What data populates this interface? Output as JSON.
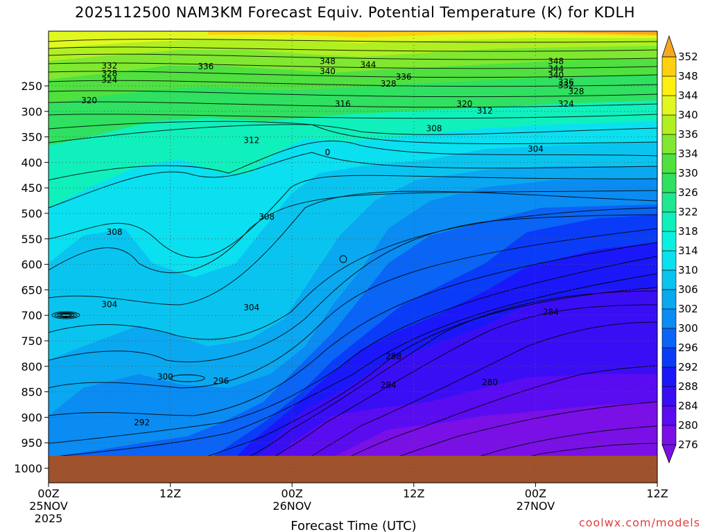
{
  "title": "2025112500 NAM3KM Forecast Equiv. Potential Temperature (K) for KDLH",
  "credit": "coolwx.com/models",
  "chart_data": {
    "type": "heatmap",
    "title": "2025112500 NAM3KM Forecast Equiv. Potential Temperature (K) for KDLH",
    "xlabel": "Forecast Time (UTC)",
    "ylabel": "",
    "x_ticks": [
      {
        "label": "00Z",
        "sub": "25NOV",
        "sub2": "2025",
        "hour": 0
      },
      {
        "label": "12Z",
        "sub": "",
        "sub2": "",
        "hour": 12
      },
      {
        "label": "00Z",
        "sub": "26NOV",
        "sub2": "",
        "hour": 24
      },
      {
        "label": "12Z",
        "sub": "",
        "sub2": "",
        "hour": 36
      },
      {
        "label": "00Z",
        "sub": "27NOV",
        "sub2": "",
        "hour": 48
      },
      {
        "label": "12Z",
        "sub": "",
        "sub2": "",
        "hour": 60
      }
    ],
    "x_range_hours": [
      0,
      60
    ],
    "y_ticks": [
      250,
      300,
      350,
      400,
      450,
      500,
      550,
      600,
      650,
      700,
      750,
      800,
      850,
      900,
      950,
      1000
    ],
    "y_unit": "hPa",
    "colorbar_levels": [
      276,
      280,
      284,
      288,
      292,
      296,
      300,
      302,
      306,
      310,
      314,
      318,
      322,
      326,
      330,
      334,
      336,
      340,
      344,
      348,
      352
    ],
    "colorbar_colors": [
      "#7a10e6",
      "#5a0cf0",
      "#3a0ef5",
      "#1a18f8",
      "#0a3cf8",
      "#0a64f5",
      "#0a8cf2",
      "#0aa8f0",
      "#0ac4f0",
      "#0ae0f0",
      "#0af0e0",
      "#10f0bc",
      "#20e890",
      "#30e060",
      "#50e040",
      "#80e830",
      "#b0f020",
      "#e0f820",
      "#fff010",
      "#ffd010",
      "#f8a820"
    ],
    "contour_labels": [
      {
        "value": 348,
        "hour": 27.5,
        "p": 203
      },
      {
        "value": 348,
        "hour": 50,
        "p": 203
      },
      {
        "value": 344,
        "hour": 31.5,
        "p": 210
      },
      {
        "value": 344,
        "hour": 50,
        "p": 218
      },
      {
        "value": 340,
        "hour": 27.5,
        "p": 223
      },
      {
        "value": 340,
        "hour": 50,
        "p": 230
      },
      {
        "value": 336,
        "hour": 15.5,
        "p": 213
      },
      {
        "value": 336,
        "hour": 35,
        "p": 234
      },
      {
        "value": 336,
        "hour": 51,
        "p": 244
      },
      {
        "value": 332,
        "hour": 6,
        "p": 212
      },
      {
        "value": 332,
        "hour": 51,
        "p": 251
      },
      {
        "value": 328,
        "hour": 6,
        "p": 227
      },
      {
        "value": 328,
        "hour": 33.5,
        "p": 247
      },
      {
        "value": 328,
        "hour": 52,
        "p": 262
      },
      {
        "value": 324,
        "hour": 6,
        "p": 240
      },
      {
        "value": 324,
        "hour": 51,
        "p": 287
      },
      {
        "value": 320,
        "hour": 4,
        "p": 280
      },
      {
        "value": 320,
        "hour": 41,
        "p": 287
      },
      {
        "value": 316,
        "hour": 29,
        "p": 287
      },
      {
        "value": 312,
        "hour": 43,
        "p": 300
      },
      {
        "value": 312,
        "hour": 20,
        "p": 358
      },
      {
        "value": 308,
        "hour": 38,
        "p": 335
      },
      {
        "value": 308,
        "hour": 6.5,
        "p": 538
      },
      {
        "value": 308,
        "hour": 21.5,
        "p": 508
      },
      {
        "value": 304,
        "hour": 48,
        "p": 375
      },
      {
        "value": 304,
        "hour": 6,
        "p": 680
      },
      {
        "value": 304,
        "hour": 20,
        "p": 686
      },
      {
        "value": 300,
        "hour": 11.5,
        "p": 822
      },
      {
        "value": 296,
        "hour": 17,
        "p": 830
      },
      {
        "value": 292,
        "hour": 9.2,
        "p": 912
      },
      {
        "value": 288,
        "hour": 34,
        "p": 782
      },
      {
        "value": 284,
        "hour": 33.5,
        "p": 838
      },
      {
        "value": 284,
        "hour": 49.5,
        "p": 695
      },
      {
        "value": 280,
        "hour": 43.5,
        "p": 833
      },
      {
        "value": 0,
        "hour": 27.5,
        "p": 382
      }
    ],
    "surface_pressure_hpa": 958,
    "grid": true
  },
  "axis": {
    "xlabel": "Forecast Time (UTC)"
  }
}
